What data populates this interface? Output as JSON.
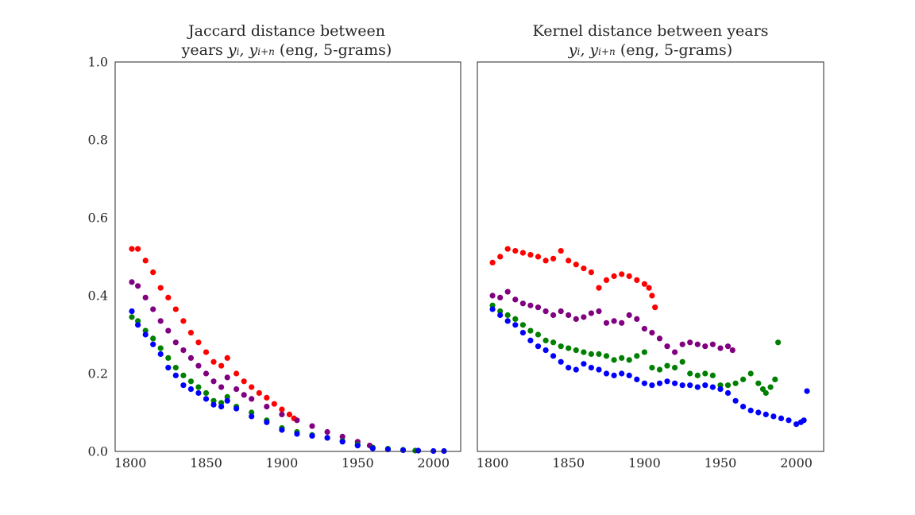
{
  "chart_data": [
    {
      "type": "scatter",
      "title_line1": "Jaccard distance between",
      "title_line2_prefix": "years",
      "title_line2_suffix": "(eng, 5-grams)",
      "xlabel": "",
      "ylabel": "",
      "xlim": [
        1790,
        2018
      ],
      "ylim": [
        0,
        1
      ],
      "xticks": [
        "1800",
        "1850",
        "1900",
        "1950",
        "2000"
      ],
      "yticks": [
        "0.0",
        "0.2",
        "0.4",
        "0.6",
        "0.8",
        "1.0"
      ],
      "grid": false,
      "series": [
        {
          "color": "#ff0000",
          "x": [
            1801,
            1805,
            1810,
            1815,
            1820,
            1825,
            1830,
            1835,
            1840,
            1845,
            1850,
            1855,
            1860,
            1864,
            1870,
            1875,
            1880,
            1885,
            1890,
            1895,
            1900,
            1905,
            1908
          ],
          "y": [
            0.52,
            0.52,
            0.49,
            0.46,
            0.42,
            0.395,
            0.365,
            0.335,
            0.305,
            0.28,
            0.255,
            0.23,
            0.22,
            0.24,
            0.2,
            0.18,
            0.165,
            0.15,
            0.138,
            0.122,
            0.108,
            0.095,
            0.085
          ]
        },
        {
          "color": "#800080",
          "x": [
            1801,
            1805,
            1810,
            1815,
            1820,
            1825,
            1830,
            1835,
            1840,
            1845,
            1850,
            1855,
            1860,
            1864,
            1870,
            1875,
            1880,
            1890,
            1900,
            1910,
            1920,
            1930,
            1940,
            1950,
            1958
          ],
          "y": [
            0.435,
            0.425,
            0.395,
            0.365,
            0.335,
            0.31,
            0.28,
            0.26,
            0.24,
            0.22,
            0.2,
            0.18,
            0.165,
            0.19,
            0.16,
            0.145,
            0.135,
            0.115,
            0.095,
            0.08,
            0.065,
            0.05,
            0.038,
            0.025,
            0.015
          ]
        },
        {
          "color": "#008000",
          "x": [
            1801,
            1805,
            1810,
            1815,
            1820,
            1825,
            1830,
            1835,
            1840,
            1845,
            1850,
            1855,
            1860,
            1864,
            1870,
            1880,
            1890,
            1900,
            1910,
            1920,
            1930,
            1940,
            1950,
            1960,
            1970,
            1980,
            1988
          ],
          "y": [
            0.345,
            0.335,
            0.31,
            0.29,
            0.265,
            0.24,
            0.215,
            0.195,
            0.18,
            0.165,
            0.15,
            0.13,
            0.125,
            0.14,
            0.115,
            0.1,
            0.08,
            0.06,
            0.05,
            0.042,
            0.035,
            0.027,
            0.018,
            0.01,
            0.007,
            0.004,
            0.002
          ]
        },
        {
          "color": "#0000ff",
          "x": [
            1801,
            1805,
            1810,
            1815,
            1820,
            1825,
            1830,
            1835,
            1840,
            1845,
            1850,
            1855,
            1860,
            1864,
            1870,
            1880,
            1890,
            1900,
            1910,
            1920,
            1930,
            1940,
            1950,
            1960,
            1970,
            1980,
            1990,
            2000,
            2007
          ],
          "y": [
            0.36,
            0.325,
            0.3,
            0.275,
            0.25,
            0.215,
            0.195,
            0.17,
            0.16,
            0.15,
            0.135,
            0.12,
            0.115,
            0.13,
            0.11,
            0.09,
            0.075,
            0.055,
            0.045,
            0.04,
            0.035,
            0.025,
            0.015,
            0.008,
            0.005,
            0.003,
            0.002,
            0.001,
            0.001
          ]
        }
      ]
    },
    {
      "type": "scatter",
      "title_line1": "Kernel distance between years",
      "title_line2_prefix": "",
      "title_line2_suffix": "(eng, 5-grams)",
      "xlabel": "",
      "ylabel": "",
      "xlim": [
        1790,
        2018
      ],
      "ylim": [
        0,
        1
      ],
      "xticks": [
        "1800",
        "1850",
        "1900",
        "1950",
        "2000"
      ],
      "yticks": [],
      "grid": false,
      "series": [
        {
          "color": "#ff0000",
          "x": [
            1800,
            1805,
            1810,
            1815,
            1820,
            1825,
            1830,
            1835,
            1840,
            1845,
            1850,
            1855,
            1860,
            1865,
            1870,
            1875,
            1880,
            1885,
            1890,
            1895,
            1900,
            1903,
            1905,
            1907
          ],
          "y": [
            0.485,
            0.5,
            0.52,
            0.515,
            0.51,
            0.505,
            0.5,
            0.49,
            0.495,
            0.515,
            0.49,
            0.48,
            0.47,
            0.46,
            0.42,
            0.44,
            0.45,
            0.455,
            0.45,
            0.44,
            0.43,
            0.42,
            0.4,
            0.37
          ]
        },
        {
          "color": "#800080",
          "x": [
            1800,
            1805,
            1810,
            1815,
            1820,
            1825,
            1830,
            1835,
            1840,
            1845,
            1850,
            1855,
            1860,
            1865,
            1870,
            1875,
            1880,
            1885,
            1890,
            1895,
            1900,
            1905,
            1910,
            1915,
            1920,
            1925,
            1930,
            1935,
            1940,
            1945,
            1950,
            1955,
            1958
          ],
          "y": [
            0.4,
            0.395,
            0.41,
            0.39,
            0.38,
            0.375,
            0.37,
            0.36,
            0.35,
            0.36,
            0.35,
            0.34,
            0.345,
            0.355,
            0.36,
            0.33,
            0.335,
            0.33,
            0.35,
            0.34,
            0.315,
            0.305,
            0.29,
            0.27,
            0.255,
            0.275,
            0.28,
            0.275,
            0.27,
            0.275,
            0.265,
            0.27,
            0.26
          ]
        },
        {
          "color": "#008000",
          "x": [
            1800,
            1805,
            1810,
            1815,
            1820,
            1825,
            1830,
            1835,
            1840,
            1845,
            1850,
            1855,
            1860,
            1865,
            1870,
            1875,
            1880,
            1885,
            1890,
            1895,
            1900,
            1905,
            1910,
            1915,
            1920,
            1925,
            1930,
            1935,
            1940,
            1945,
            1950,
            1955,
            1960,
            1965,
            1970,
            1975,
            1978,
            1980,
            1983,
            1986,
            1988
          ],
          "y": [
            0.375,
            0.36,
            0.35,
            0.34,
            0.325,
            0.31,
            0.3,
            0.285,
            0.28,
            0.27,
            0.265,
            0.26,
            0.255,
            0.25,
            0.25,
            0.245,
            0.235,
            0.24,
            0.235,
            0.245,
            0.255,
            0.215,
            0.21,
            0.22,
            0.215,
            0.23,
            0.2,
            0.195,
            0.2,
            0.195,
            0.17,
            0.17,
            0.175,
            0.185,
            0.2,
            0.175,
            0.16,
            0.15,
            0.165,
            0.185,
            0.28
          ]
        },
        {
          "color": "#0000ff",
          "x": [
            1800,
            1805,
            1810,
            1815,
            1820,
            1825,
            1830,
            1835,
            1840,
            1845,
            1850,
            1855,
            1860,
            1865,
            1870,
            1875,
            1880,
            1885,
            1890,
            1895,
            1900,
            1905,
            1910,
            1915,
            1920,
            1925,
            1930,
            1935,
            1940,
            1945,
            1950,
            1955,
            1960,
            1965,
            1970,
            1975,
            1980,
            1985,
            1990,
            1995,
            2000,
            2003,
            2005,
            2007
          ],
          "y": [
            0.365,
            0.35,
            0.335,
            0.325,
            0.305,
            0.285,
            0.27,
            0.26,
            0.245,
            0.23,
            0.215,
            0.21,
            0.225,
            0.215,
            0.21,
            0.2,
            0.195,
            0.2,
            0.195,
            0.185,
            0.175,
            0.17,
            0.175,
            0.18,
            0.175,
            0.17,
            0.17,
            0.165,
            0.17,
            0.165,
            0.16,
            0.15,
            0.13,
            0.115,
            0.105,
            0.1,
            0.095,
            0.09,
            0.085,
            0.08,
            0.07,
            0.075,
            0.08,
            0.155
          ]
        }
      ]
    }
  ]
}
